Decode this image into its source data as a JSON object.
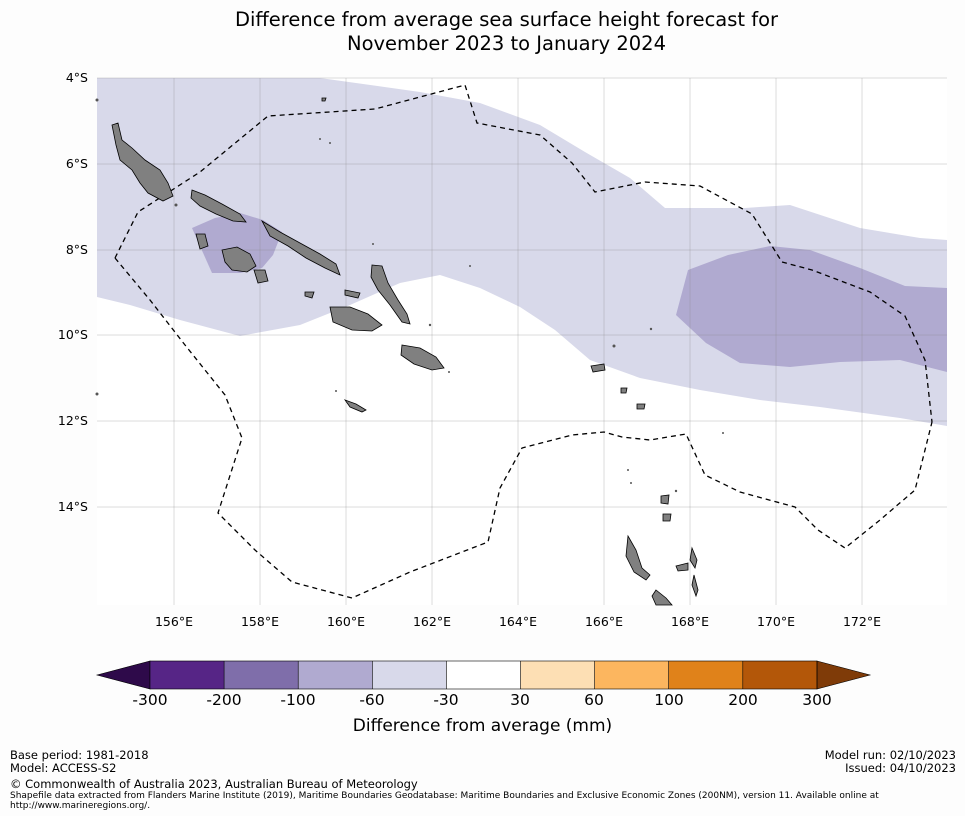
{
  "title_line1": "Difference from average sea surface height forecast for",
  "title_line2": "November 2023 to January 2024",
  "map": {
    "lat_labels": [
      "4°S",
      "6°S",
      "8°S",
      "10°S",
      "12°S",
      "14°S"
    ],
    "lon_labels": [
      "156°E",
      "158°E",
      "160°E",
      "162°E",
      "164°E",
      "166°E",
      "168°E",
      "170°E",
      "172°E"
    ],
    "lon_range": [
      154.2,
      174.0
    ],
    "lat_range": [
      -4.0,
      -16.2
    ],
    "land_color": "#808080",
    "eez_line": "dashed black"
  },
  "colorbar": {
    "title": "Difference from average (mm)",
    "ticks": [
      "-300",
      "-200",
      "-100",
      "-60",
      "-30",
      "30",
      "60",
      "100",
      "200",
      "300"
    ],
    "colors": [
      "#562586",
      "#7f6eaa",
      "#b0aad0",
      "#d8d9ea",
      "#ffffff",
      "#fddfb4",
      "#fcb65f",
      "#e0821a",
      "#b35709"
    ],
    "under_color": "#2e0a4a",
    "over_color": "#7f3b08"
  },
  "footer": {
    "base_period": "Base period: 1981-2018",
    "model": "Model: ACCESS-S2",
    "model_run": "Model run: 02/10/2023",
    "issued": "Issued: 04/10/2023",
    "copyright": "© Commonwealth of Australia 2023, Australian Bureau of Meteorology",
    "shapefile_line1": "Shapefile data extracted from Flanders Marine Institute (2019), Maritime Boundaries Geodatabase: Maritime Boundaries and Exclusive Economic Zones (200NM), version 11. Available online at",
    "shapefile_line2": "http://www.marineregions.org/."
  }
}
